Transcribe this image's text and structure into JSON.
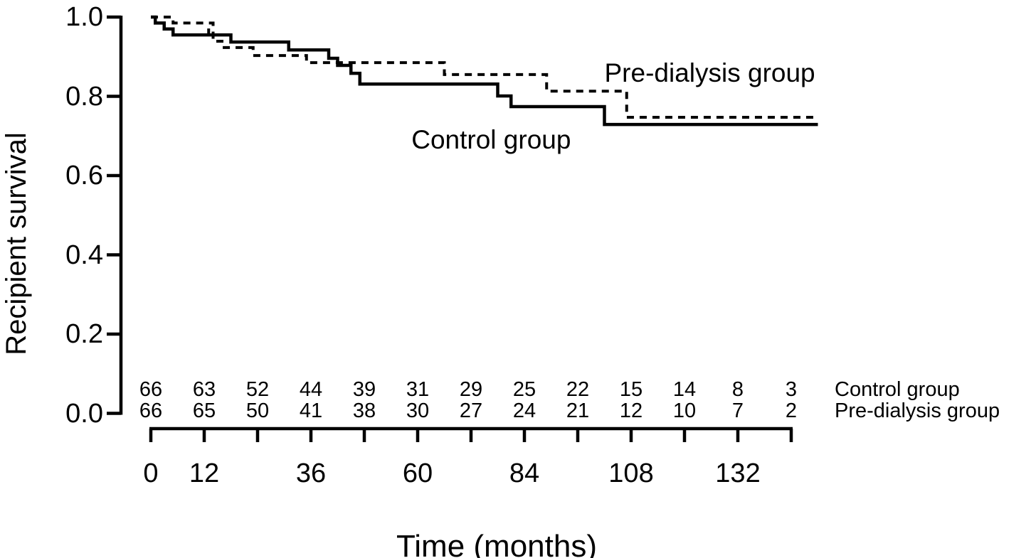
{
  "chart_data": {
    "type": "line",
    "subtype": "kaplan-meier-step-curves",
    "title": "",
    "xlabel": "Time (months)",
    "ylabel": "Recipient survival",
    "xlim": [
      0,
      150
    ],
    "ylim": [
      0.0,
      1.0
    ],
    "grid": false,
    "x_tick_values": [
      0,
      12,
      24,
      36,
      48,
      60,
      72,
      84,
      96,
      108,
      120,
      132,
      144
    ],
    "x_tick_labels": [
      "0",
      "12",
      "36",
      "60",
      "84",
      "108",
      "132"
    ],
    "y_tick_labels": [
      "1.0",
      "0.8",
      "0.6",
      "0.4",
      "0.2",
      "0.0"
    ],
    "series": [
      {
        "name": "Control group",
        "style": "solid",
        "color": "#000000",
        "steps": [
          [
            0,
            1.0
          ],
          [
            1,
            0.985
          ],
          [
            3,
            0.97
          ],
          [
            5,
            0.955
          ],
          [
            18,
            0.937
          ],
          [
            31,
            0.917
          ],
          [
            40,
            0.896
          ],
          [
            42,
            0.878
          ],
          [
            45,
            0.858
          ],
          [
            47,
            0.831
          ],
          [
            78,
            0.801
          ],
          [
            81,
            0.774
          ],
          [
            102,
            0.729
          ]
        ],
        "end_time": 150,
        "censor_marks": [
          {
            "t": 13,
            "s": 0.955
          }
        ]
      },
      {
        "name": "Pre-dialysis group",
        "style": "dotted",
        "color": "#000000",
        "steps": [
          [
            0,
            1.0
          ],
          [
            5,
            0.985
          ],
          [
            14,
            0.939
          ],
          [
            16,
            0.923
          ],
          [
            23,
            0.903
          ],
          [
            35,
            0.885
          ],
          [
            66,
            0.855
          ],
          [
            89,
            0.813
          ],
          [
            107,
            0.747
          ]
        ],
        "end_time": 149,
        "censor_marks": []
      }
    ],
    "annotations": [
      {
        "text": "Pre-dialysis group",
        "t": 102,
        "s": 0.858
      },
      {
        "text": "Control group",
        "t": 58.6,
        "s": 0.69
      }
    ],
    "risk_table": {
      "times": [
        0,
        12,
        24,
        36,
        48,
        60,
        72,
        84,
        96,
        108,
        120,
        132,
        144
      ],
      "rows": [
        {
          "label": "Control group",
          "counts": [
            66,
            63,
            52,
            44,
            39,
            31,
            29,
            25,
            22,
            15,
            14,
            8,
            3
          ]
        },
        {
          "label": "Pre-dialysis group",
          "counts": [
            66,
            65,
            50,
            41,
            38,
            30,
            27,
            24,
            21,
            12,
            10,
            7,
            2
          ]
        }
      ]
    }
  }
}
